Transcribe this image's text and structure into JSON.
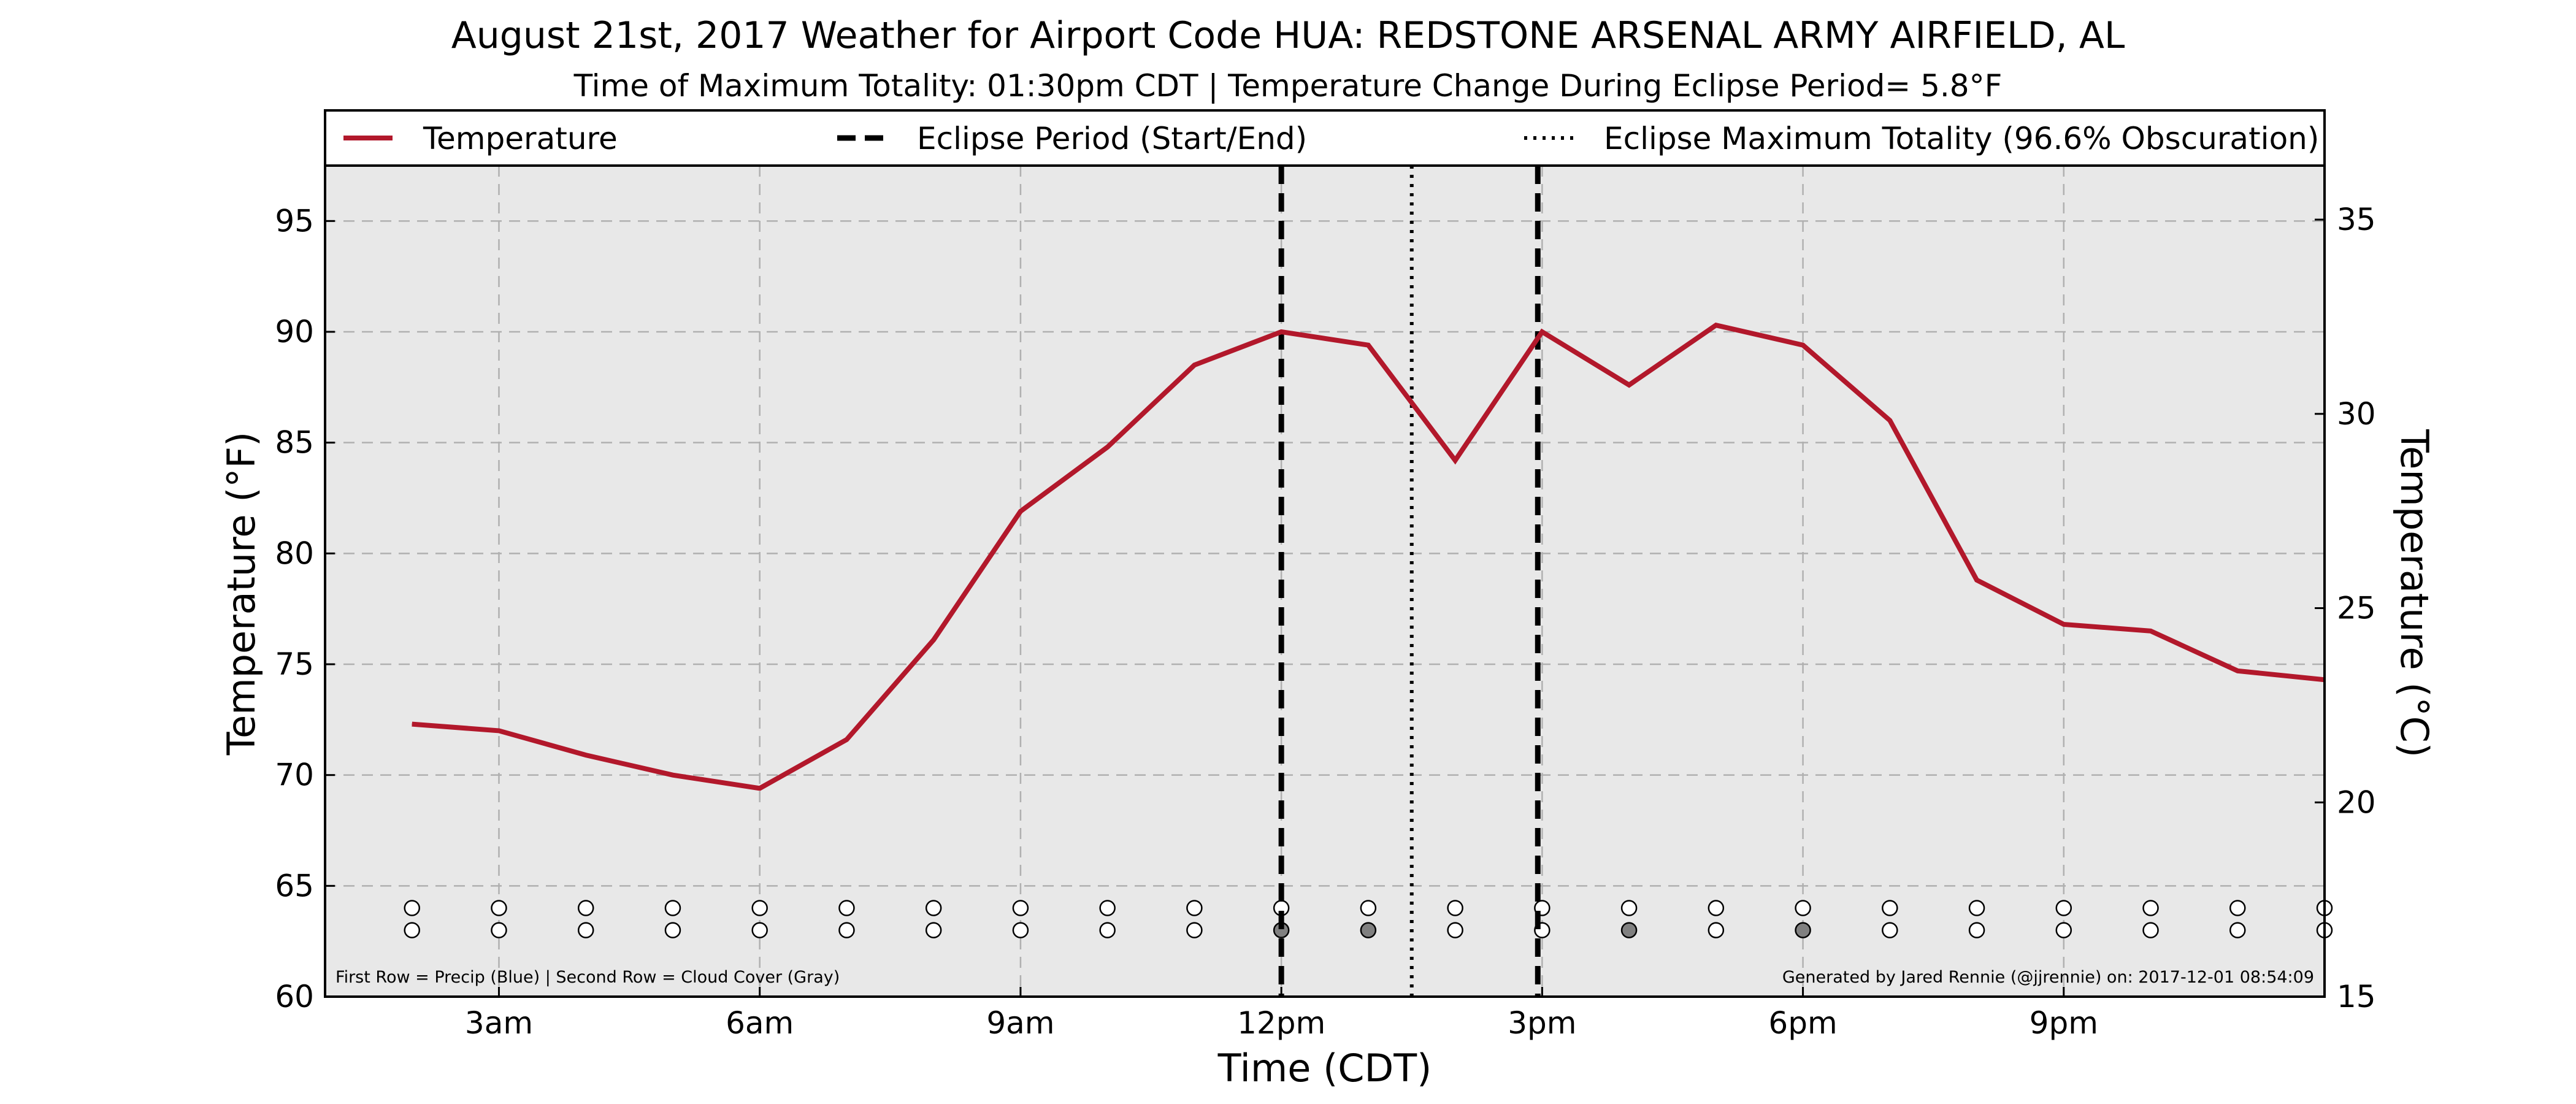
{
  "chart_data": {
    "type": "line",
    "title": "August 21st, 2017 Weather for Airport Code HUA: REDSTONE ARSENAL ARMY AIRFIELD, AL",
    "subtitle": "Time of Maximum Totality: 01:30pm CDT | Temperature Change During Eclipse Period= 5.8°F",
    "xlabel": "Time (CDT)",
    "ylabel": "Temperature (°F)",
    "ylabel_right": "Temperature (°C)",
    "xlim": [
      1.0,
      24.0
    ],
    "ylim": [
      60,
      97.5
    ],
    "ylim_right_c": [
      15,
      36.39
    ],
    "x_ticks": [
      {
        "x": 3,
        "label": "3am"
      },
      {
        "x": 6,
        "label": "6am"
      },
      {
        "x": 9,
        "label": "9am"
      },
      {
        "x": 12,
        "label": "12pm"
      },
      {
        "x": 15,
        "label": "3pm"
      },
      {
        "x": 18,
        "label": "6pm"
      },
      {
        "x": 21,
        "label": "9pm"
      }
    ],
    "y_ticks": [
      60,
      65,
      70,
      75,
      80,
      85,
      90,
      95
    ],
    "y_ticks_right": [
      15,
      20,
      25,
      30,
      35
    ],
    "grid": true,
    "legend_position": "top",
    "legend": [
      {
        "label": "Temperature",
        "style": "solid"
      },
      {
        "label": "Eclipse Period (Start/End)",
        "style": "dashed"
      },
      {
        "label": "Eclipse Maximum Totality (96.6% Obscuration)",
        "style": "dotted"
      }
    ],
    "series": [
      {
        "name": "Temperature",
        "color": "#b2182b",
        "x": [
          2,
          3,
          4,
          5,
          6,
          7,
          8,
          9,
          10,
          11,
          12,
          13,
          14,
          15,
          16,
          17,
          18,
          19,
          20,
          21,
          22,
          23,
          24
        ],
        "values": [
          72.3,
          72.0,
          70.9,
          70.0,
          69.4,
          71.6,
          76.1,
          81.9,
          84.8,
          88.5,
          90.0,
          89.4,
          84.2,
          90.0,
          87.6,
          90.3,
          89.4,
          86.0,
          78.8,
          76.8,
          76.5,
          74.7,
          74.3
        ]
      }
    ],
    "eclipse_start_x": 12.0,
    "eclipse_end_x": 14.95,
    "max_totality_x": 13.5,
    "precip_row_y": 64.0,
    "cloud_row_y": 63.0,
    "indicator_x": [
      2,
      3,
      4,
      5,
      6,
      7,
      8,
      9,
      10,
      11,
      12,
      13,
      14,
      15,
      16,
      17,
      18,
      19,
      20,
      21,
      22,
      23,
      24
    ],
    "precip_fill": [
      "#ffffff",
      "#ffffff",
      "#ffffff",
      "#ffffff",
      "#ffffff",
      "#ffffff",
      "#ffffff",
      "#ffffff",
      "#ffffff",
      "#ffffff",
      "#ffffff",
      "#ffffff",
      "#ffffff",
      "#ffffff",
      "#ffffff",
      "#ffffff",
      "#ffffff",
      "#ffffff",
      "#ffffff",
      "#ffffff",
      "#ffffff",
      "#ffffff",
      "#ffffff"
    ],
    "cloud_fill": [
      "#ffffff",
      "#ffffff",
      "#ffffff",
      "#ffffff",
      "#ffffff",
      "#ffffff",
      "#ffffff",
      "#ffffff",
      "#ffffff",
      "#ffffff",
      "#808080",
      "#808080",
      "#ffffff",
      "#ffffff",
      "#808080",
      "#ffffff",
      "#808080",
      "#ffffff",
      "#ffffff",
      "#ffffff",
      "#ffffff",
      "#ffffff",
      "#ffffff"
    ],
    "note_left": "First Row = Precip (Blue) | Second Row = Cloud Cover (Gray)",
    "note_right": "Generated by Jared Rennie (@jjrennie) on: 2017-12-01 08:54:09",
    "colors": {
      "plot_background": "#e8e8e8",
      "grid": "#b0b0b0",
      "temperature": "#b2182b",
      "eclipse_lines": "#000000"
    }
  }
}
